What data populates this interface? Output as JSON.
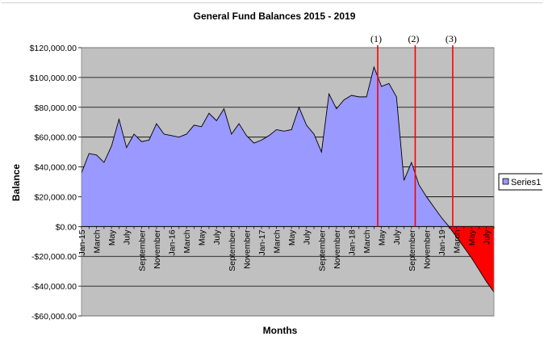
{
  "chart_data": {
    "type": "area",
    "title": "General Fund Balances 2015 - 2019",
    "xlabel": "Months",
    "ylabel": "Balance",
    "ylim": [
      -60000,
      120000
    ],
    "y_ticks": [
      120000,
      100000,
      80000,
      60000,
      40000,
      20000,
      0,
      -20000,
      -40000,
      -60000
    ],
    "y_tick_labels": [
      "$120,000.00",
      "$100,000.00",
      "$80,000.00",
      "$60,000.00",
      "$40,000.00",
      "$20,000.00",
      "$0.00",
      "-$20,000.00",
      "-$40,000.00",
      "-$60,000.00"
    ],
    "grid": true,
    "legend_position": "right",
    "colors": {
      "plot_bg": "#c0c0c0",
      "series_fill": "#9999ff",
      "negative_fill": "#ff0000",
      "marker_line": "#ff0000"
    },
    "x_tick_labels": [
      {
        "i": 0,
        "label": "Jan-15"
      },
      {
        "i": 2,
        "label": "March"
      },
      {
        "i": 4,
        "label": "May"
      },
      {
        "i": 6,
        "label": "July"
      },
      {
        "i": 8,
        "label": "September"
      },
      {
        "i": 10,
        "label": "November"
      },
      {
        "i": 12,
        "label": "Jan-16"
      },
      {
        "i": 14,
        "label": "March"
      },
      {
        "i": 16,
        "label": "May"
      },
      {
        "i": 18,
        "label": "July"
      },
      {
        "i": 20,
        "label": "September"
      },
      {
        "i": 22,
        "label": "November"
      },
      {
        "i": 24,
        "label": "Jan-17"
      },
      {
        "i": 26,
        "label": "March"
      },
      {
        "i": 28,
        "label": "May"
      },
      {
        "i": 30,
        "label": "July"
      },
      {
        "i": 32,
        "label": "September"
      },
      {
        "i": 34,
        "label": "November"
      },
      {
        "i": 36,
        "label": "Jan-18"
      },
      {
        "i": 38,
        "label": "March"
      },
      {
        "i": 40,
        "label": "May"
      },
      {
        "i": 42,
        "label": "July"
      },
      {
        "i": 44,
        "label": "September"
      },
      {
        "i": 46,
        "label": "November"
      },
      {
        "i": 48,
        "label": "Jan-19"
      },
      {
        "i": 50,
        "label": "March"
      },
      {
        "i": 52,
        "label": "May"
      },
      {
        "i": 54,
        "label": "July"
      }
    ],
    "series": [
      {
        "name": "Series1",
        "values": [
          36000,
          49000,
          48000,
          43000,
          54000,
          72000,
          53000,
          62000,
          57000,
          58000,
          69000,
          62000,
          61000,
          60000,
          62000,
          68000,
          67000,
          76000,
          71000,
          79000,
          62000,
          69000,
          61000,
          56000,
          58000,
          61000,
          65000,
          64000,
          65000,
          80000,
          68000,
          62000,
          50000,
          89000,
          79000,
          85000,
          88000,
          87000,
          87000,
          107000,
          94000,
          96000,
          87000,
          31000,
          43000,
          28000,
          20000,
          13000,
          6000,
          0,
          -7000,
          -14000,
          -21000,
          -29000,
          -37000,
          -44000
        ]
      }
    ],
    "markers": [
      {
        "label": "(1)",
        "x_index": 39
      },
      {
        "label": "(2)",
        "x_index": 44
      },
      {
        "label": "(3)",
        "x_index": 49
      }
    ]
  }
}
